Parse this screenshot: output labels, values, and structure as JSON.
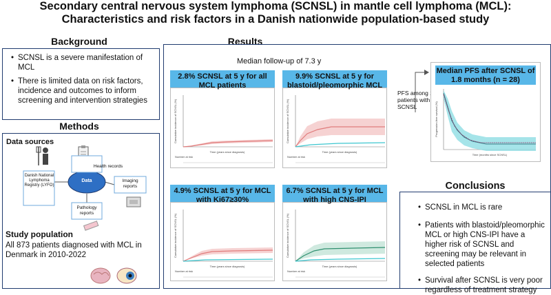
{
  "title_line1": "Secondary central nervous system lymphoma (SCNSL) in mantle cell lymphoma (MCL):",
  "title_line2": "Characteristics and risk factors in a Danish nationwide population-based study",
  "background": {
    "heading": "Background",
    "bullets": [
      "SCNSL is a severe manifestation of MCL",
      "There is limited data on risk factors, incidence and outcomes to inform screening and intervention strategies"
    ]
  },
  "methods": {
    "heading": "Methods",
    "data_sources_label": "Data sources",
    "diagram": {
      "center": "Data",
      "registry": "Danish National Lymphoma Registry (LYFO)",
      "health_records": "Health records",
      "imaging": "Imaging reports",
      "pathology": "Pathology reports"
    },
    "study_population_label": "Study population",
    "study_population_text": "All 873 patients diagnosed with MCL in Denmark in 2010-2022"
  },
  "results": {
    "heading": "Results",
    "median_followup": "Median follow-up of 7.3 y",
    "panels": [
      {
        "title": "2.8% SCNSL at 5 y for all MCL patients",
        "color": "#e89a9a"
      },
      {
        "title": "9.9% SCNSL at 5 y for blastoid/pleomorphic MCL",
        "color": "#e07b7b"
      },
      {
        "title": "4.9% SCNSL at 5 y for MCL with Ki67≥30%",
        "color": "#e07b7b"
      },
      {
        "title": "6.7% SCNSL at 5 y for MCL with high CNS-IPI",
        "color": "#2f8f6f"
      }
    ],
    "pfs_note": "PFS among 28 patients with SCNSL",
    "pfs_panel_title": "Median PFS after SCNSL of 1.8 months (n = 28)",
    "axis_time_label": "Time (years since diagnosis)",
    "axis_cum_label": "Cumulative incidence of SCNSL (%)",
    "pfs_x_label": "Time (months since SCNSL)",
    "pfs_y_label": "Progression-free survival (%)",
    "risk_label": "Number at risk"
  },
  "conclusions": {
    "heading": "Conclusions",
    "bullets": [
      "SCNSL in MCL is rare",
      "Patients with blastoid/pleomorphic MCL or high CNS-IPI have a higher risk of SCNSL and screening may be relevant in selected patients",
      "Survival after SCNSL is very poor regardless of treatment strategy"
    ]
  },
  "colors": {
    "accent_blue": "#58b7e8",
    "frame": "#1f3a6e",
    "teal": "#3cc6cf",
    "red": "#e07b7b"
  }
}
